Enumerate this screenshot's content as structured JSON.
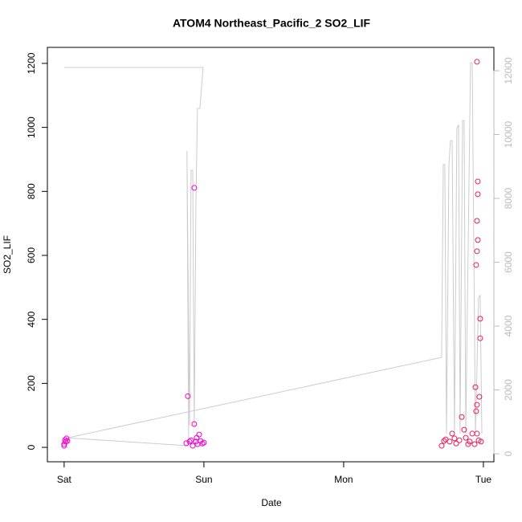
{
  "chart_data": {
    "type": "scatter",
    "title": "ATOM4 Northeast_Pacific_2 SO2_LIF",
    "x_label": "Date",
    "y_label": "SO2_LIF",
    "x": [
      0,
      0.006,
      0.011,
      0.017,
      0,
      0.023,
      0.885,
      0.931,
      0.931,
      0.874,
      0.897,
      0.92,
      0.948,
      0.966,
      0.977,
      0.989,
      0.908,
      0.954,
      0.943,
      1.0,
      2.954,
      2.96,
      2.96,
      2.954,
      2.96,
      2.954,
      2.948,
      2.977,
      2.977,
      2.943,
      2.971,
      2.954,
      2.948,
      2.845,
      2.862,
      2.776,
      2.701,
      2.73,
      2.759,
      2.805,
      2.828,
      2.874,
      2.902,
      2.92,
      2.937,
      2.966,
      2.983,
      2.718,
      2.793,
      2.891,
      2.954
    ],
    "values": [
      10,
      23,
      18,
      28,
      5,
      20,
      160,
      811,
      73,
      13,
      18,
      5,
      30,
      40,
      20,
      12,
      22,
      10,
      18,
      15,
      1205,
      831,
      791,
      708,
      648,
      613,
      570,
      402,
      341,
      188,
      158,
      133,
      113,
      95,
      55,
      43,
      5,
      25,
      18,
      12,
      22,
      30,
      18,
      43,
      10,
      22,
      18,
      20,
      28,
      10,
      43
    ],
    "point_colors": [
      "#ee00cc",
      "#ee00cc",
      "#ee00cc",
      "#ee00cc",
      "#ee00cc",
      "#ee00cc",
      "#ee00cc",
      "#ee00cc",
      "#ee00cc",
      "#ee00cc",
      "#ee00cc",
      "#ee00cc",
      "#ee00cc",
      "#ee00cc",
      "#ee00cc",
      "#ee00cc",
      "#ee00cc",
      "#ee00cc",
      "#ee00cc",
      "#ee00cc",
      "#e8195f",
      "#e8195f",
      "#e8195f",
      "#e8195f",
      "#e8195f",
      "#e8195f",
      "#e8195f",
      "#e8195f",
      "#e8195f",
      "#e8195f",
      "#e8195f",
      "#e8195f",
      "#e8195f",
      "#e8195f",
      "#e8195f",
      "#e8195f",
      "#e8195f",
      "#e8195f",
      "#e8195f",
      "#e8195f",
      "#e8195f",
      "#e8195f",
      "#e8195f",
      "#e8195f",
      "#e8195f",
      "#e8195f",
      "#e8195f",
      "#e8195f",
      "#e8195f",
      "#e8195f",
      "#e8195f"
    ],
    "line": {
      "axis": "y2",
      "color": "#cccccc",
      "x": [
        0,
        0.994,
        0.971,
        0.954,
        0.943,
        0.931,
        0.92,
        0.908,
        0.897,
        0.879,
        0.891,
        0.023,
        2.701,
        2.713,
        2.724,
        2.736,
        2.753,
        2.764,
        2.776,
        2.793,
        2.81,
        2.822,
        2.833,
        2.851,
        2.862,
        2.874,
        2.908,
        2.92,
        2.943,
        2.966,
        2.977,
        2.989
      ],
      "values": [
        12100,
        12100,
        10820,
        10820,
        7920,
        880,
        8880,
        8880,
        880,
        9480,
        250,
        500,
        3020,
        9060,
        9060,
        630,
        9060,
        9810,
        9810,
        630,
        10190,
        10310,
        630,
        10440,
        10440,
        630,
        12250,
        12250,
        630,
        4910,
        4960,
        630
      ]
    },
    "xlim": [
      -0.12,
      3.075
    ],
    "xticks": [
      {
        "value": 0,
        "label": "Sat"
      },
      {
        "value": 1,
        "label": "Sun"
      },
      {
        "value": 2,
        "label": "Mon"
      },
      {
        "value": 3,
        "label": "Tue"
      }
    ],
    "ylim": [
      -45,
      1250
    ],
    "yticks": [
      0,
      200,
      400,
      600,
      800,
      1000,
      1200
    ],
    "y2lim": [
      -250,
      12730
    ],
    "y2ticks": [
      0,
      2000,
      4000,
      6000,
      8000,
      10000,
      12000
    ],
    "y2_color": "#bbbbbb",
    "grid": false
  }
}
